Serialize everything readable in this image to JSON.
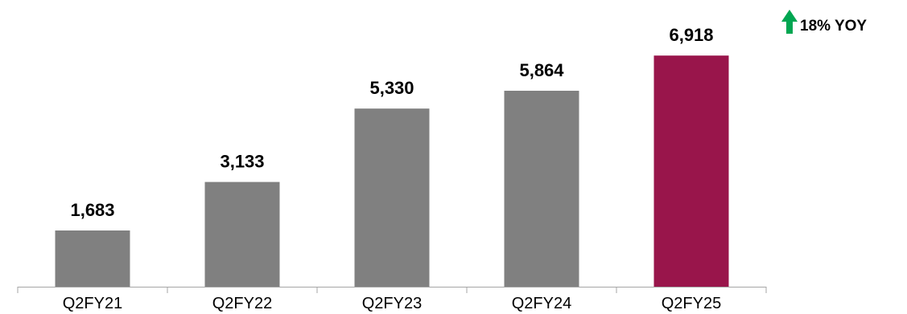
{
  "chart_data": {
    "type": "bar",
    "title": "",
    "xlabel": "",
    "ylabel": "",
    "categories": [
      "Q2FY21",
      "Q2FY22",
      "Q2FY23",
      "Q2FY24",
      "Q2FY25"
    ],
    "values": [
      1683,
      3133,
      5330,
      5864,
      6918
    ],
    "value_labels": [
      "1,683",
      "3,133",
      "5,330",
      "5,864",
      "6,918"
    ],
    "ylim": [
      0,
      8340
    ],
    "grid": false,
    "legend": "none",
    "colors": {
      "default_bar": "#808080",
      "highlight_bar": "#99154B",
      "axis": "#A6A6A6",
      "arrow": "#00A651"
    },
    "highlight_index": 4
  },
  "annotation": {
    "text": "18% YOY",
    "icon": "up-arrow-icon"
  }
}
